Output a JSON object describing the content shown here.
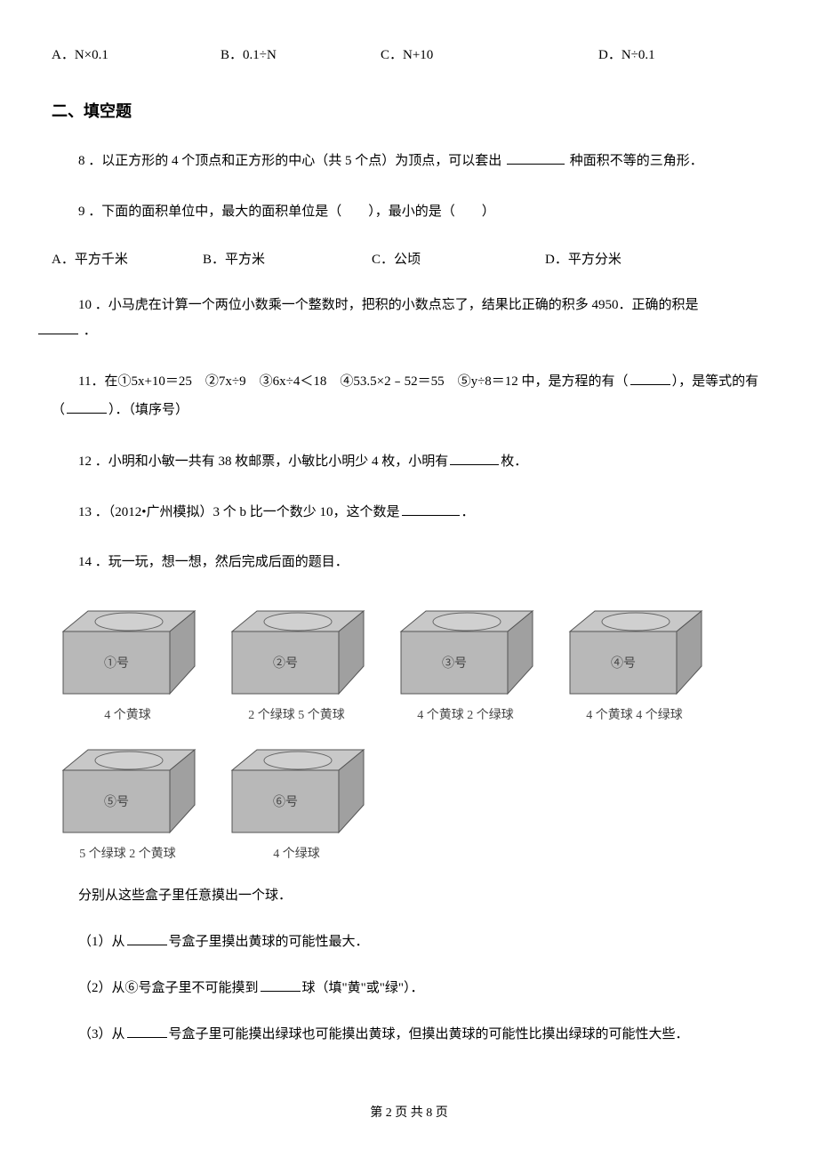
{
  "q7_options": {
    "a": "A．N×0.1",
    "b": "B．0.1÷N",
    "c": "C．N+10",
    "d": "D．N÷0.1"
  },
  "section2_header": "二、填空题",
  "q8": "8 ．以正方形的 4 个顶点和正方形的中心（共 5 个点）为顶点，可以套出",
  "q8_tail": "种面积不等的三角形．",
  "q9": "9 ．下面的面积单位中，最大的面积单位是（　　），最小的是（　　）",
  "q9_options": {
    "a": "A．平方千米",
    "b": "B．平方米",
    "c": "C．公顷",
    "d": "D．平方分米"
  },
  "q10": "10 ．小马虎在计算一个两位小数乘一个整数时，把积的小数点忘了，结果比正确的积多 4950．正确的积是",
  "q10_tail": "．",
  "q11_part1": "11．在①5x+10＝25　②7x÷9　③6x÷4＜18　④53.5×2﹣52＝55　⑤y÷8＝12 中，是方程的有（",
  "q11_part2": "），是等式的有（",
  "q11_part3": "）．（填序号）",
  "q12_part1": "12 ．小明和小敏一共有 38 枚邮票，小敏比小明少 4 枚，小明有",
  "q12_part2": "枚．",
  "q13_part1": "13 ．（2012•广州模拟）3 个 b 比一个数少 10，这个数是",
  "q13_part2": "．",
  "q14": "14 ．玩一玩，想一想，然后完成后面的题目．",
  "q14_intro": "分别从这些盒子里任意摸出一个球．",
  "q14_sub1_a": "（1）从",
  "q14_sub1_b": "号盒子里摸出黄球的可能性最大．",
  "q14_sub2_a": "（2）从⑥号盒子里不可能摸到",
  "q14_sub2_b": "球（填\"黄\"或\"绿\"）．",
  "q14_sub3_a": "（3）从",
  "q14_sub3_b": "号盒子里可能摸出绿球也可能摸出黄球，但摸出黄球的可能性比摸出绿球的可能性大些．",
  "footer": "第 2 页 共 8 页",
  "boxes": [
    {
      "label": "①号",
      "caption": "4 个黄球"
    },
    {
      "label": "②号",
      "caption": "2 个绿球 5 个黄球"
    },
    {
      "label": "③号",
      "caption": "4 个黄球 2 个绿球"
    },
    {
      "label": "④号",
      "caption": "4 个黄球 4 个绿球"
    },
    {
      "label": "⑤号",
      "caption": "5 个绿球 2 个黄球"
    },
    {
      "label": "⑥号",
      "caption": "4 个绿球"
    }
  ],
  "box_style": {
    "width": 155,
    "height": 110,
    "fill_front": "#b8b8b8",
    "fill_top": "#c8c8c8",
    "fill_side": "#a0a0a0",
    "stroke": "#555555",
    "ellipse_fill": "#d0d0d0",
    "ellipse_stroke": "#666666",
    "text_color": "#444444"
  }
}
